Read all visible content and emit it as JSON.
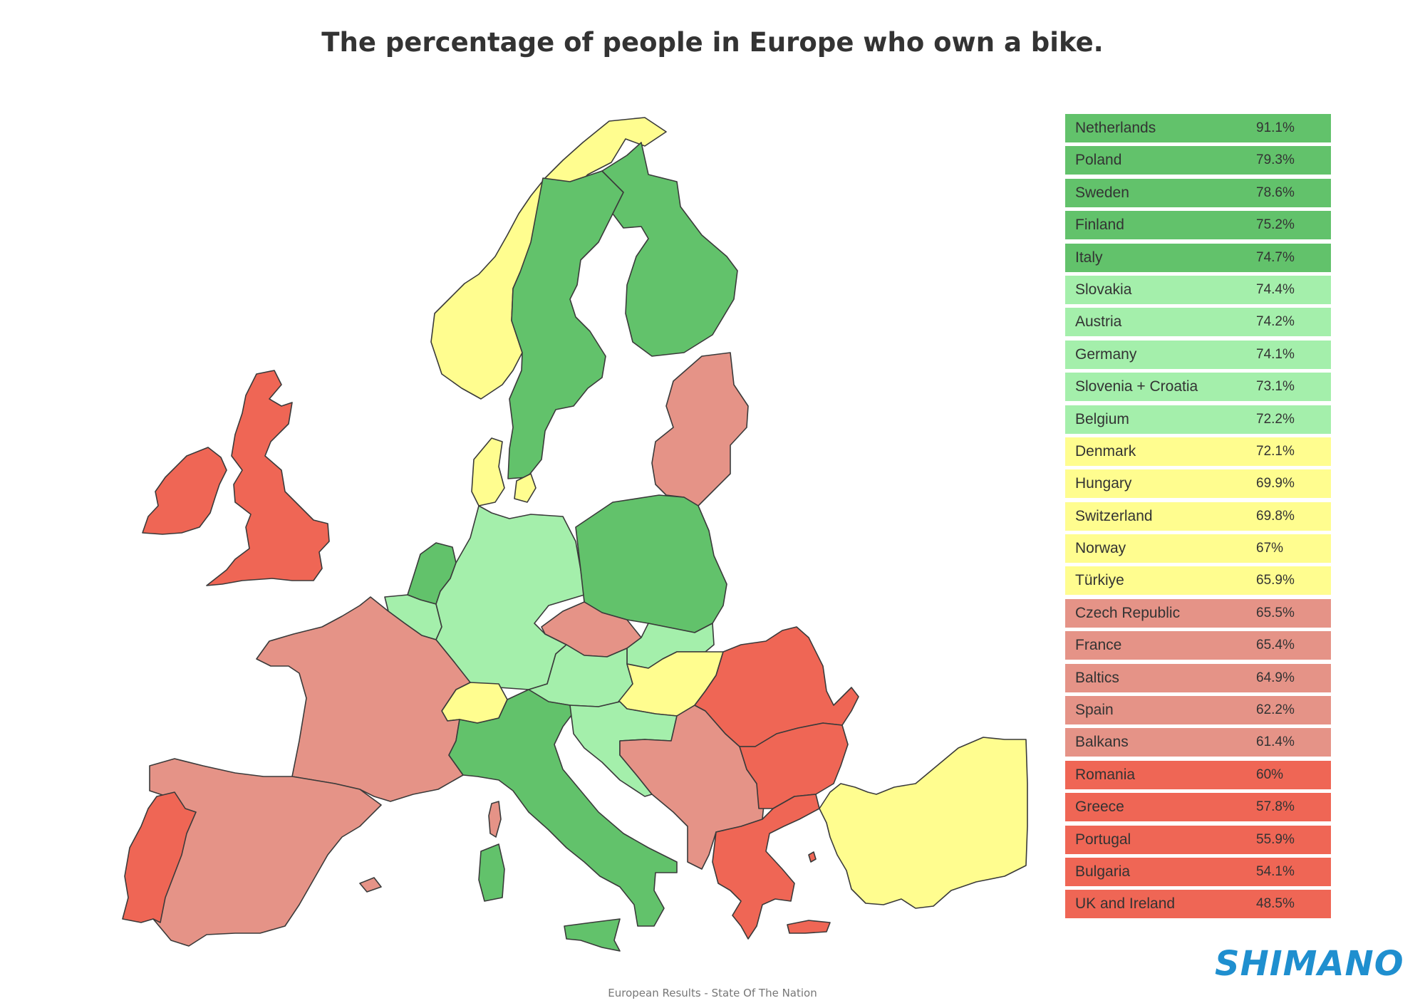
{
  "title": "The percentage of people in Europe who own a bike.",
  "footer": "European Results - State Of The Nation",
  "logo_text": "SHIMANO",
  "colors": {
    "dark_green": "#62c26b",
    "light_green": "#a4efab",
    "yellow": "#fffd8f",
    "salmon": "#e59387",
    "red": "#ef6655",
    "logo_blue": "#1f8fcf"
  },
  "legend": [
    {
      "name": "Netherlands",
      "value": "91.1%",
      "pct": 91.1,
      "tier": "dark_green"
    },
    {
      "name": "Poland",
      "value": "79.3%",
      "pct": 79.3,
      "tier": "dark_green"
    },
    {
      "name": "Sweden",
      "value": "78.6%",
      "pct": 78.6,
      "tier": "dark_green"
    },
    {
      "name": "Finland",
      "value": "75.2%",
      "pct": 75.2,
      "tier": "dark_green"
    },
    {
      "name": "Italy",
      "value": "74.7%",
      "pct": 74.7,
      "tier": "dark_green"
    },
    {
      "name": "Slovakia",
      "value": "74.4%",
      "pct": 74.4,
      "tier": "light_green"
    },
    {
      "name": "Austria",
      "value": "74.2%",
      "pct": 74.2,
      "tier": "light_green"
    },
    {
      "name": "Germany",
      "value": "74.1%",
      "pct": 74.1,
      "tier": "light_green"
    },
    {
      "name": "Slovenia + Croatia",
      "value": "73.1%",
      "pct": 73.1,
      "tier": "light_green"
    },
    {
      "name": "Belgium",
      "value": "72.2%",
      "pct": 72.2,
      "tier": "light_green"
    },
    {
      "name": "Denmark",
      "value": "72.1%",
      "pct": 72.1,
      "tier": "yellow"
    },
    {
      "name": "Hungary",
      "value": "69.9%",
      "pct": 69.9,
      "tier": "yellow"
    },
    {
      "name": "Switzerland",
      "value": "69.8%",
      "pct": 69.8,
      "tier": "yellow"
    },
    {
      "name": "Norway",
      "value": "67%",
      "pct": 67,
      "tier": "yellow"
    },
    {
      "name": "Türkiye",
      "value": "65.9%",
      "pct": 65.9,
      "tier": "yellow"
    },
    {
      "name": "Czech Republic",
      "value": "65.5%",
      "pct": 65.5,
      "tier": "salmon"
    },
    {
      "name": "France",
      "value": "65.4%",
      "pct": 65.4,
      "tier": "salmon"
    },
    {
      "name": "Baltics",
      "value": "64.9%",
      "pct": 64.9,
      "tier": "salmon"
    },
    {
      "name": "Spain",
      "value": "62.2%",
      "pct": 62.2,
      "tier": "salmon"
    },
    {
      "name": "Balkans",
      "value": "61.4%",
      "pct": 61.4,
      "tier": "salmon"
    },
    {
      "name": "Romania",
      "value": "60%",
      "pct": 60,
      "tier": "red"
    },
    {
      "name": "Greece",
      "value": "57.8%",
      "pct": 57.8,
      "tier": "red"
    },
    {
      "name": "Portugal",
      "value": "55.9%",
      "pct": 55.9,
      "tier": "red"
    },
    {
      "name": "Bulgaria",
      "value": "54.1%",
      "pct": 54.1,
      "tier": "red"
    },
    {
      "name": "UK and Ireland",
      "value": "48.5%",
      "pct": 48.5,
      "tier": "red"
    }
  ]
}
